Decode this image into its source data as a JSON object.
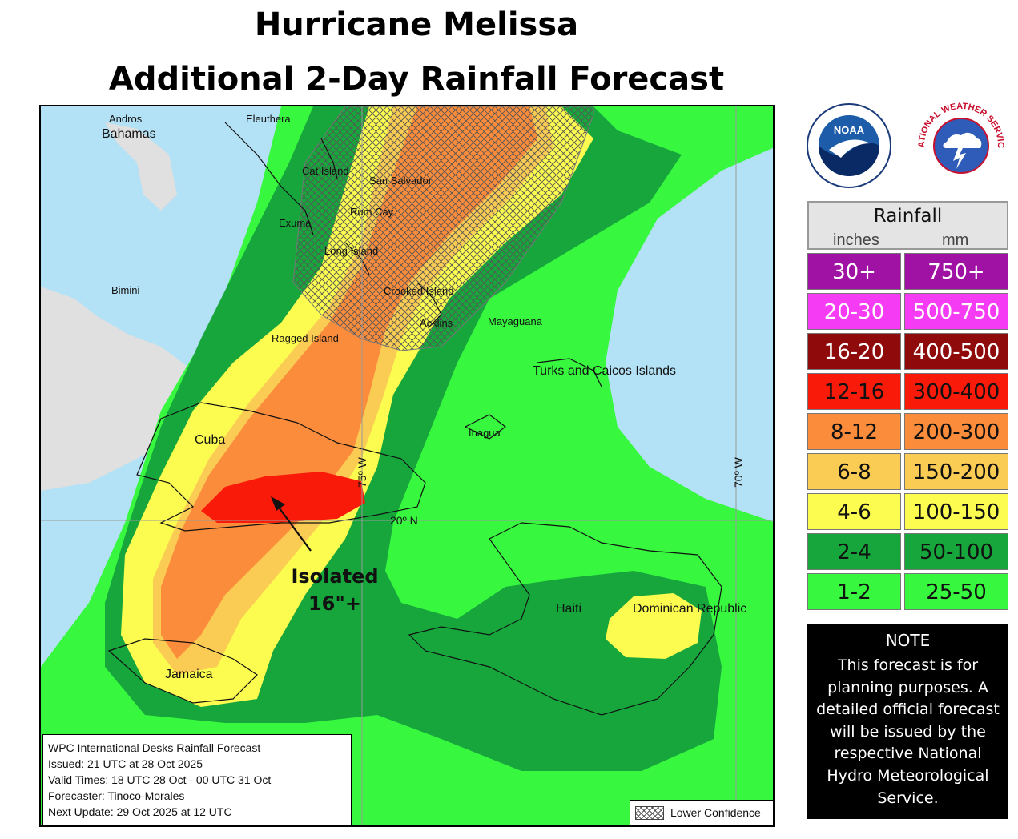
{
  "title": {
    "line1": "Hurricane Melissa",
    "line2": "Additional 2-Day Rainfall Forecast"
  },
  "map": {
    "places": [
      {
        "id": "andros",
        "label": "Andros"
      },
      {
        "id": "bahamas",
        "label": "Bahamas"
      },
      {
        "id": "eleuthera",
        "label": "Eleuthera"
      },
      {
        "id": "cat-island",
        "label": "Cat Island"
      },
      {
        "id": "san-salvador",
        "label": "San Salvador"
      },
      {
        "id": "rum-cay",
        "label": "Rum Cay"
      },
      {
        "id": "exuma",
        "label": "Exuma"
      },
      {
        "id": "long-island",
        "label": "Long Island"
      },
      {
        "id": "bimini",
        "label": "Bimini"
      },
      {
        "id": "crooked-island",
        "label": "Crooked Island"
      },
      {
        "id": "acklins",
        "label": "Acklins"
      },
      {
        "id": "mayaguana",
        "label": "Mayaguana"
      },
      {
        "id": "ragged-island",
        "label": "Ragged Island"
      },
      {
        "id": "turks-caicos",
        "label": "Turks and Caicos Islands"
      },
      {
        "id": "inagua",
        "label": "Inagua"
      },
      {
        "id": "cuba",
        "label": "Cuba"
      },
      {
        "id": "haiti",
        "label": "Haiti"
      },
      {
        "id": "dominican-republic",
        "label": "Dominican Republic"
      },
      {
        "id": "jamaica",
        "label": "Jamaica"
      }
    ],
    "gridlines": {
      "lon75": "75º W",
      "lon70": "70º W",
      "lat20": "20º N"
    },
    "annotation": {
      "line1": "Isolated",
      "line2": "16\"+"
    },
    "info": [
      "WPC International Desks Rainfall Forecast",
      "Issued: 21 UTC at 28 Oct 2025",
      "Valid Times: 18 UTC 28 Oct - 00 UTC 31 Oct",
      "Forecaster: Tinoco-Morales",
      "Next Update: 29 Oct 2025 at 12 UTC"
    ],
    "confidence_label": "Lower Confidence",
    "colors": {
      "ocean": "#b3e1f5",
      "land": "#e0e0e0",
      "band_1_2": "#37f83f",
      "band_2_4": "#16a63c",
      "band_4_6": "#fbfc4f",
      "band_6_8": "#fbcc53",
      "band_8_12": "#fb8c3b",
      "band_12_16": "#fa1a0a"
    }
  },
  "logos": {
    "noaa": "NOAA",
    "nws": "NATIONAL WEATHER SERVICE"
  },
  "legend": {
    "title": "Rainfall",
    "inches_label": "inches",
    "mm_label": "mm",
    "rows": [
      {
        "inches": "30+",
        "mm": "750+",
        "color": "#a012a4"
      },
      {
        "inches": "20-30",
        "mm": "500-750",
        "color": "#f63bf4"
      },
      {
        "inches": "16-20",
        "mm": "400-500",
        "color": "#8f0a0a"
      },
      {
        "inches": "12-16",
        "mm": "300-400",
        "color": "#fa1a0a"
      },
      {
        "inches": "8-12",
        "mm": "200-300",
        "color": "#fb8c3b"
      },
      {
        "inches": "6-8",
        "mm": "150-200",
        "color": "#fbcc53"
      },
      {
        "inches": "4-6",
        "mm": "100-150",
        "color": "#fbfc4f"
      },
      {
        "inches": "2-4",
        "mm": "50-100",
        "color": "#16a63c"
      },
      {
        "inches": "1-2",
        "mm": "25-50",
        "color": "#37f83f"
      }
    ]
  },
  "note": {
    "title": "NOTE",
    "lines": [
      "This forecast is for",
      "planning purposes. A",
      "detailed official forecast",
      "will be issued by the",
      "respective National",
      "Hydro Meteorological",
      "Service."
    ]
  }
}
